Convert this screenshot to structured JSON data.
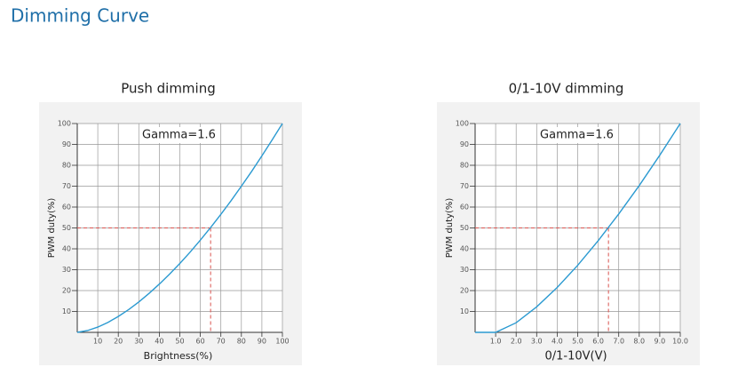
{
  "title": "Dimming Curve",
  "chart_data": [
    {
      "type": "line",
      "title": "Push dimming",
      "x_label": "Brightness(%)",
      "y_label": "PWM duty(%)",
      "annotation": "Gamma=1.6",
      "x": [
        0,
        5,
        10,
        15,
        20,
        25,
        30,
        35,
        40,
        45,
        50,
        55,
        60,
        65,
        70,
        75,
        80,
        85,
        90,
        95,
        100
      ],
      "values": [
        0,
        0.83,
        2.51,
        4.81,
        7.61,
        10.88,
        14.57,
        18.64,
        23.09,
        27.87,
        32.99,
        38.42,
        44.17,
        50.2,
        56.51,
        63.11,
        69.98,
        77.1,
        84.49,
        92.12,
        100
      ],
      "color": "#2b9ad1",
      "xlim": [
        0,
        100
      ],
      "ylim": [
        0,
        100
      ],
      "xticks": [
        10,
        20,
        30,
        40,
        50,
        60,
        70,
        80,
        90,
        100
      ],
      "yticks": [
        10,
        20,
        30,
        40,
        50,
        60,
        70,
        80,
        90,
        100
      ],
      "reference": {
        "x": 65,
        "y": 50,
        "color": "#d9534f"
      },
      "grid": true
    },
    {
      "type": "line",
      "title": "0/1-10V dimming",
      "x_label": "0/1-10V(V)",
      "y_label": "PWM duty(%)",
      "annotation": "Gamma=1.6",
      "x": [
        0,
        1,
        2,
        3,
        4,
        5,
        6,
        7,
        8,
        9,
        10
      ],
      "values": [
        0,
        0,
        4.6,
        12.2,
        21.5,
        32.1,
        43.9,
        56.7,
        70.3,
        84.8,
        100
      ],
      "color": "#2b9ad1",
      "xlim": [
        0,
        10
      ],
      "ylim": [
        0,
        100
      ],
      "xticks": [
        {
          "value": 1,
          "label": "1.0"
        },
        {
          "value": 2,
          "label": "2.0"
        },
        {
          "value": 3,
          "label": "3.0"
        },
        {
          "value": 4,
          "label": "4.0"
        },
        {
          "value": 5,
          "label": "5.0"
        },
        {
          "value": 6,
          "label": "6.0"
        },
        {
          "value": 7,
          "label": "7.0"
        },
        {
          "value": 8,
          "label": "8.0"
        },
        {
          "value": 9,
          "label": "9.0"
        },
        {
          "value": 10,
          "label": "10.0"
        }
      ],
      "yticks": [
        10,
        20,
        30,
        40,
        50,
        60,
        70,
        80,
        90,
        100
      ],
      "reference": {
        "x": 6.5,
        "y": 50,
        "color": "#d9534f"
      },
      "grid": true
    }
  ]
}
